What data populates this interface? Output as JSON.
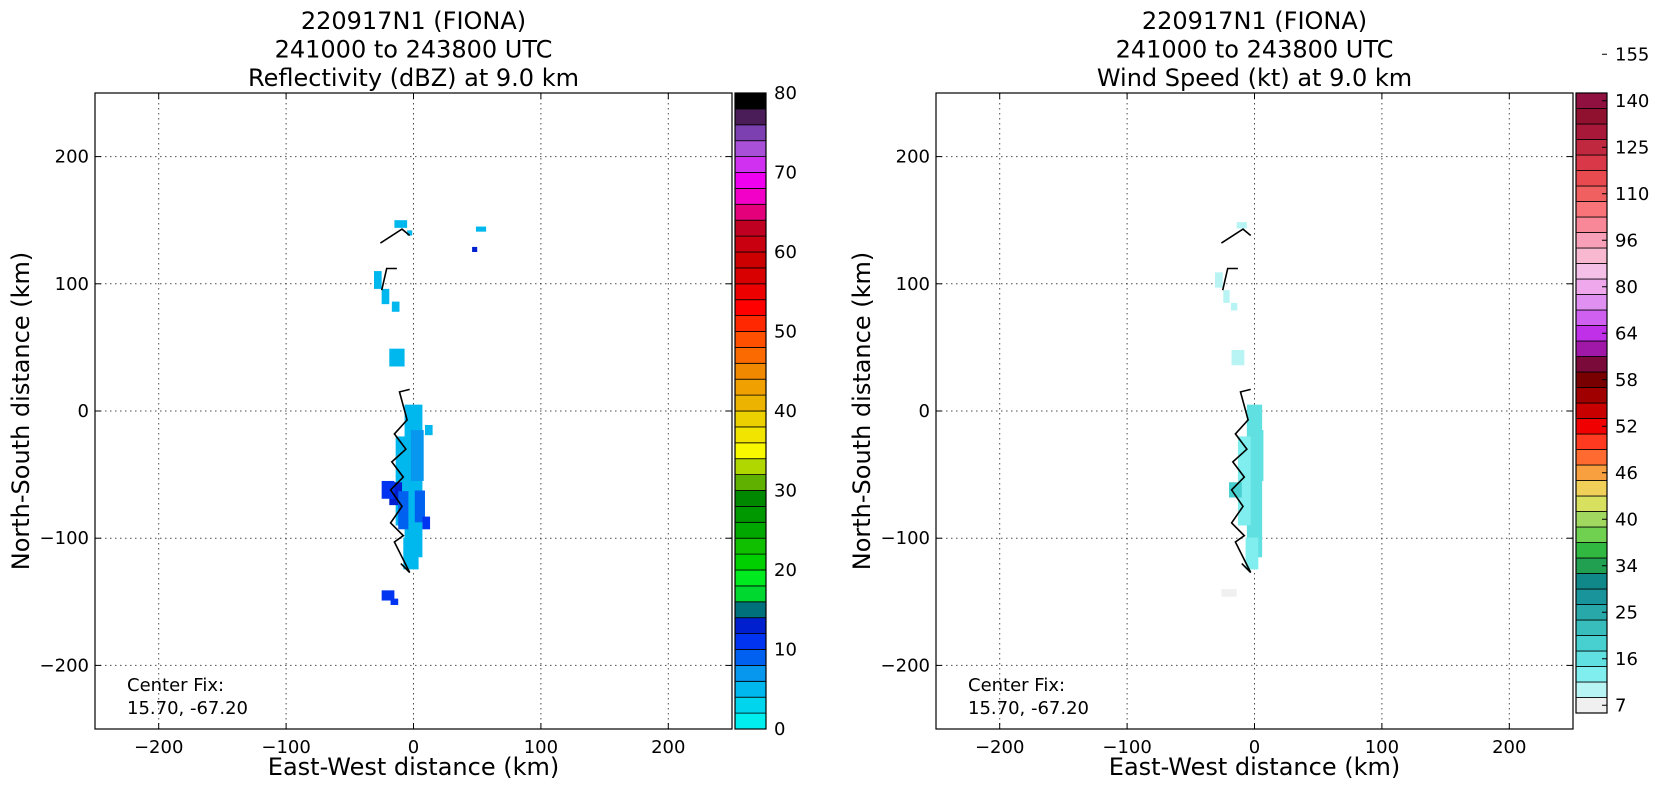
{
  "chart_data": [
    {
      "type": "heatmap",
      "title": [
        "220917N1 (FIONA)",
        "241000 to 243800 UTC",
        "Reflectivity (dBZ) at 9.0 km"
      ],
      "xlabel": "East-West distance (km)",
      "ylabel": "North-South distance (km)",
      "xlim": [
        -250,
        250
      ],
      "ylim": [
        -250,
        250
      ],
      "xticks": [
        -200,
        -100,
        0,
        100,
        200
      ],
      "yticks": [
        -200,
        -100,
        0,
        100,
        200
      ],
      "grid": true,
      "annotation": [
        "Center Fix:",
        "15.70, -67.20"
      ],
      "colorbar": {
        "min": 0,
        "max": 80,
        "ticks": [
          0,
          10,
          20,
          30,
          40,
          50,
          60,
          70,
          80
        ],
        "colors": [
          "#00eeee",
          "#00d5ee",
          "#00b7ee",
          "#0897ee",
          "#0060f0",
          "#0034f0",
          "#0020d0",
          "#00707a",
          "#00d830",
          "#00ea20",
          "#00d000",
          "#10c000",
          "#00a800",
          "#009800",
          "#008800",
          "#60b000",
          "#b0d800",
          "#f8f800",
          "#f0e400",
          "#ecd000",
          "#ecb400",
          "#f0a000",
          "#f08800",
          "#fa6a00",
          "#ff5000",
          "#ff2800",
          "#ff0000",
          "#ec0000",
          "#d80000",
          "#cc0000",
          "#c80010",
          "#c00020",
          "#e4007a",
          "#f200c8",
          "#f000f0",
          "#d030f0",
          "#a850d8",
          "#7c40b0",
          "#4a1c58",
          "#000000"
        ]
      },
      "echoes": [
        {
          "x": 0,
          "y": -55,
          "w": 14,
          "h": 120,
          "value": 4
        },
        {
          "x": -8,
          "y": -55,
          "w": 12,
          "h": 70,
          "value": 4
        },
        {
          "x": -14,
          "y": -65,
          "w": 10,
          "h": 18,
          "value": 12
        },
        {
          "x": -20,
          "y": -62,
          "w": 10,
          "h": 14,
          "value": 11
        },
        {
          "x": 5,
          "y": -75,
          "w": 8,
          "h": 25,
          "value": 9
        },
        {
          "x": 10,
          "y": -88,
          "w": 6,
          "h": 10,
          "value": 11
        },
        {
          "x": -8,
          "y": -78,
          "w": 8,
          "h": 30,
          "value": 9
        },
        {
          "x": -2,
          "y": -112,
          "w": 12,
          "h": 25,
          "value": 4
        },
        {
          "x": 3,
          "y": -35,
          "w": 10,
          "h": 40,
          "value": 7
        },
        {
          "x": 12,
          "y": -15,
          "w": 6,
          "h": 8,
          "value": 4
        },
        {
          "x": -13,
          "y": 42,
          "w": 12,
          "h": 14,
          "value": 4
        },
        {
          "x": -28,
          "y": 103,
          "w": 6,
          "h": 14,
          "value": 4
        },
        {
          "x": -22,
          "y": 90,
          "w": 6,
          "h": 12,
          "value": 4
        },
        {
          "x": -14,
          "y": 82,
          "w": 6,
          "h": 8,
          "value": 4
        },
        {
          "x": -10,
          "y": 147,
          "w": 10,
          "h": 6,
          "value": 4
        },
        {
          "x": -3,
          "y": 140,
          "w": 4,
          "h": 4,
          "value": 4
        },
        {
          "x": 53,
          "y": 143,
          "w": 8,
          "h": 4,
          "value": 4
        },
        {
          "x": 48,
          "y": 127,
          "w": 4,
          "h": 4,
          "value": 13
        },
        {
          "x": -20,
          "y": -145,
          "w": 10,
          "h": 8,
          "value": 11
        },
        {
          "x": -15,
          "y": -150,
          "w": 6,
          "h": 5,
          "value": 11
        }
      ],
      "track": [
        [
          [
            -26,
            132
          ],
          [
            -9,
            143
          ],
          [
            -3,
            138
          ]
        ],
        [
          [
            -25,
            95
          ],
          [
            -21,
            112
          ],
          [
            -13,
            112
          ]
        ],
        [
          [
            -10,
            -120
          ],
          [
            -3,
            -127
          ],
          [
            -15,
            -103
          ],
          [
            -8,
            -98
          ],
          [
            -18,
            -88
          ],
          [
            -9,
            -75
          ],
          [
            -18,
            -62
          ],
          [
            -8,
            -52
          ],
          [
            -17,
            -40
          ],
          [
            -6,
            -30
          ],
          [
            -15,
            -18
          ],
          [
            -5,
            -7
          ],
          [
            -11,
            15
          ],
          [
            -3,
            17
          ]
        ]
      ]
    },
    {
      "type": "heatmap",
      "title": [
        "220917N1 (FIONA)",
        "241000 to 243800 UTC",
        "Wind Speed (kt) at 9.0 km"
      ],
      "xlabel": "East-West distance (km)",
      "ylabel": "North-South distance (km)",
      "xlim": [
        -250,
        250
      ],
      "ylim": [
        -250,
        250
      ],
      "xticks": [
        -200,
        -100,
        0,
        100,
        200
      ],
      "yticks": [
        -200,
        -100,
        0,
        100,
        200
      ],
      "grid": true,
      "annotation": [
        "Center Fix:",
        "15.70, -67.20"
      ],
      "colorbar": {
        "min": 4,
        "max": 160,
        "ticks": [
          7,
          16,
          25,
          34,
          40,
          46,
          52,
          58,
          64,
          80,
          96,
          110,
          125,
          140,
          155
        ],
        "colors": [
          "#f0f0f0",
          "#b8f4f4",
          "#80eeee",
          "#60e0e0",
          "#48d0d0",
          "#38bcbc",
          "#28a8a8",
          "#18949a",
          "#10888a",
          "#20a050",
          "#30b840",
          "#70d050",
          "#a0d860",
          "#d8e060",
          "#f0d058",
          "#f8a040",
          "#ff6a30",
          "#ff3a20",
          "#f00000",
          "#c80000",
          "#a00000",
          "#780000",
          "#7a0a3a",
          "#a018a8",
          "#c030e8",
          "#d060f0",
          "#e090f0",
          "#f0a8ec",
          "#f4c0e8",
          "#f8b8d0",
          "#f8a0b8",
          "#f88898",
          "#f87478",
          "#f06060",
          "#e84a50",
          "#d83848",
          "#c02840",
          "#a81838",
          "#901030",
          "#901040"
        ]
      },
      "echoes": [
        {
          "x": 0,
          "y": -55,
          "w": 12,
          "h": 120,
          "value": 17
        },
        {
          "x": -8,
          "y": -55,
          "w": 10,
          "h": 70,
          "value": 15
        },
        {
          "x": -15,
          "y": -62,
          "w": 10,
          "h": 12,
          "value": 20
        },
        {
          "x": -2,
          "y": -112,
          "w": 10,
          "h": 25,
          "value": 12
        },
        {
          "x": 3,
          "y": -35,
          "w": 8,
          "h": 40,
          "value": 17
        },
        {
          "x": -13,
          "y": 42,
          "w": 10,
          "h": 12,
          "value": 11
        },
        {
          "x": -28,
          "y": 103,
          "w": 6,
          "h": 12,
          "value": 10
        },
        {
          "x": -22,
          "y": 90,
          "w": 5,
          "h": 10,
          "value": 11
        },
        {
          "x": -16,
          "y": 82,
          "w": 5,
          "h": 6,
          "value": 10
        },
        {
          "x": -10,
          "y": 146,
          "w": 8,
          "h": 5,
          "value": 11
        },
        {
          "x": -20,
          "y": -143,
          "w": 12,
          "h": 6,
          "value": 5
        }
      ],
      "track": [
        [
          [
            -26,
            132
          ],
          [
            -9,
            143
          ],
          [
            -3,
            138
          ]
        ],
        [
          [
            -25,
            95
          ],
          [
            -21,
            112
          ],
          [
            -13,
            112
          ]
        ],
        [
          [
            -10,
            -120
          ],
          [
            -3,
            -127
          ],
          [
            -15,
            -103
          ],
          [
            -8,
            -98
          ],
          [
            -18,
            -88
          ],
          [
            -9,
            -75
          ],
          [
            -18,
            -62
          ],
          [
            -8,
            -52
          ],
          [
            -17,
            -40
          ],
          [
            -6,
            -30
          ],
          [
            -15,
            -18
          ],
          [
            -5,
            -7
          ],
          [
            -11,
            15
          ],
          [
            -3,
            17
          ]
        ]
      ]
    }
  ]
}
